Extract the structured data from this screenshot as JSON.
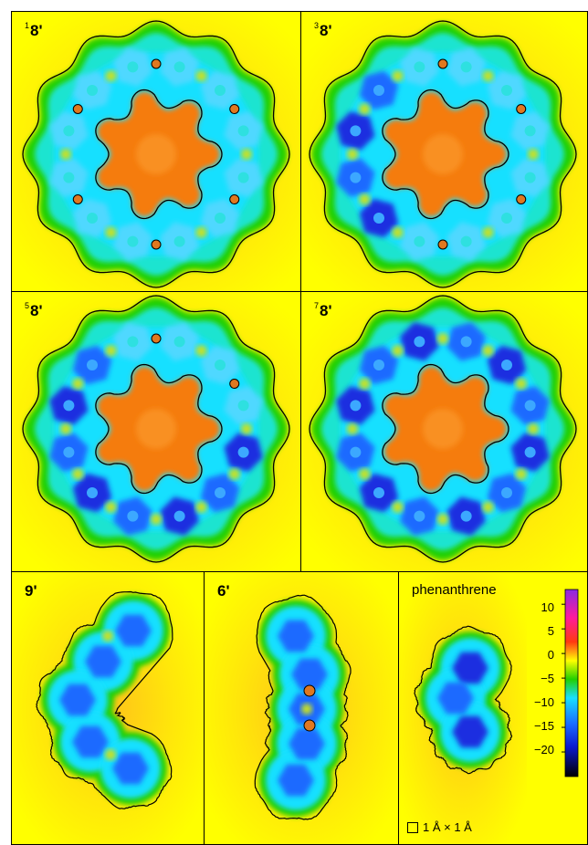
{
  "panels": [
    {
      "id": "p18",
      "sup": "1",
      "label": "8'",
      "type": "ring",
      "blocked": [
        0,
        2,
        4,
        6,
        8,
        10
      ]
    },
    {
      "id": "p38",
      "sup": "3",
      "label": "8'",
      "type": "ring",
      "blocked": [
        0,
        2,
        4,
        6
      ]
    },
    {
      "id": "p58",
      "sup": "5",
      "label": "8'",
      "type": "ring",
      "blocked": [
        0,
        2
      ]
    },
    {
      "id": "p78",
      "sup": "7",
      "label": "8'",
      "type": "ring",
      "blocked": []
    },
    {
      "id": "p9",
      "sup": "",
      "label": "9'",
      "type": "helix"
    },
    {
      "id": "p6",
      "sup": "",
      "label": "6'",
      "type": "chain"
    },
    {
      "id": "pph",
      "sup": "",
      "label": "phenanthrene",
      "type": "phen"
    }
  ],
  "colorbar": {
    "ticks": [
      "10",
      "5",
      "0",
      "−5",
      "−10",
      "−15",
      "−20"
    ],
    "tick_values": [
      10,
      5,
      0,
      -5,
      -10,
      -15,
      -20
    ],
    "range": [
      -25,
      13
    ]
  },
  "scale_label": "1 Å × 1 Å",
  "colors": {
    "background": "#ffff00",
    "ring_outer": "#22d000",
    "ring_inner": "#19e0ff",
    "hex_blue": "#1f6bff",
    "hex_dark": "#1a2de0",
    "core": "#f57c0a",
    "core_inner": "#ffad1a"
  }
}
